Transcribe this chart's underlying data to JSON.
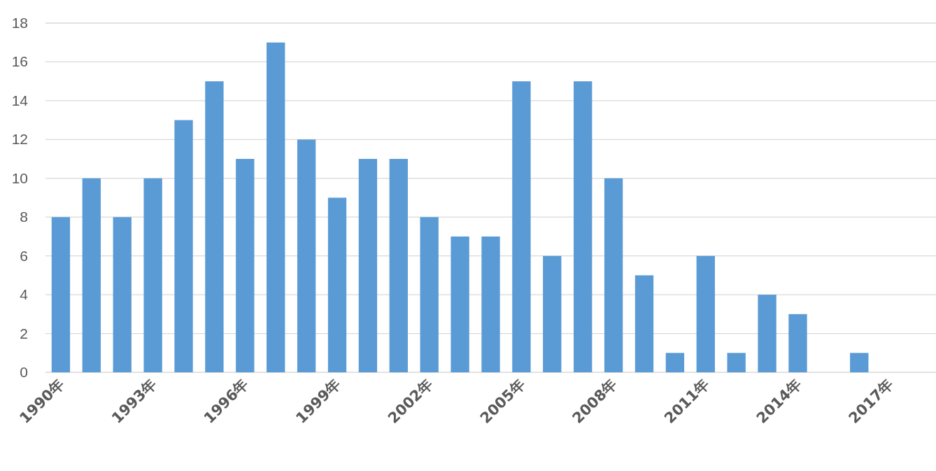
{
  "chart_data": {
    "type": "bar",
    "categories": [
      "1990年",
      null,
      null,
      "1993年",
      null,
      null,
      "1996年",
      null,
      null,
      "1999年",
      null,
      null,
      "2002年",
      null,
      null,
      "2005年",
      null,
      null,
      "2008年",
      null,
      null,
      "2011年",
      null,
      null,
      "2014年",
      null,
      null,
      "2017年",
      null
    ],
    "values": [
      8,
      10,
      8,
      10,
      13,
      15,
      11,
      17,
      12,
      9,
      11,
      11,
      8,
      7,
      7,
      15,
      6,
      15,
      10,
      5,
      1,
      6,
      1,
      4,
      3,
      0,
      1,
      0,
      0
    ],
    "color": "#5b9bd5",
    "ylim": [
      0,
      18
    ],
    "yticks": [
      0,
      2,
      4,
      6,
      8,
      10,
      12,
      14,
      16,
      18
    ],
    "grid": "y"
  }
}
